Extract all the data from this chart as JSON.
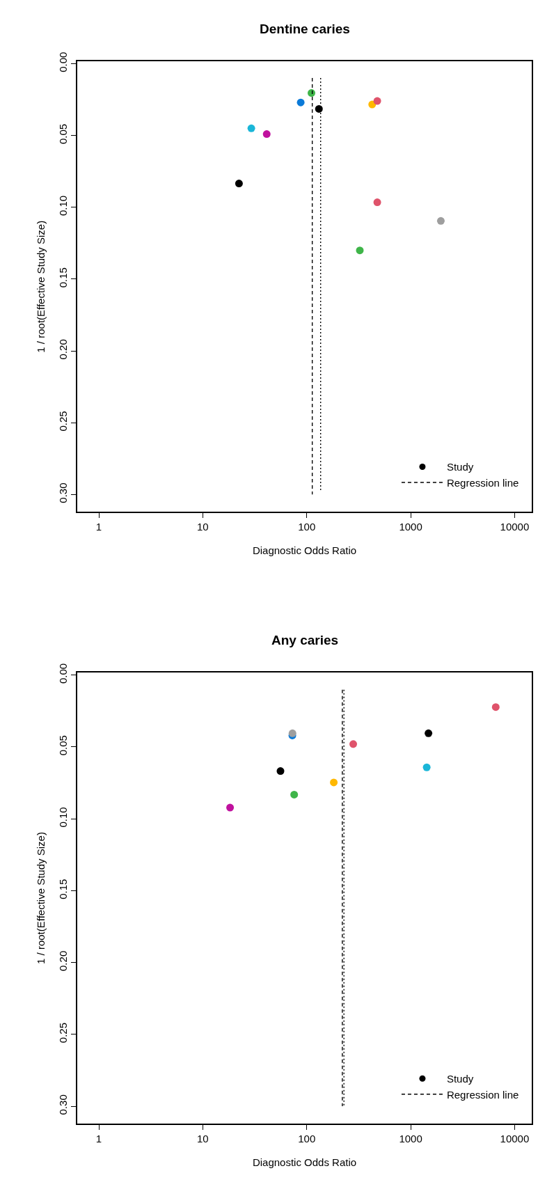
{
  "chart_data": [
    {
      "type": "scatter",
      "title": "Dentine caries",
      "xlabel": "Diagnostic Odds Ratio",
      "ylabel": "1 / root(Effective Study Size)",
      "log": "x",
      "xlim": [
        0.62,
        14600
      ],
      "xticks": [
        1,
        10,
        100,
        1000,
        10000
      ],
      "ylim": [
        0.312,
        -0.0015
      ],
      "yticks": [
        {
          "value": 0,
          "label": "0.00"
        },
        0.05,
        {
          "value": 0.1,
          "label": "0.10"
        },
        0.15,
        {
          "value": 0.2,
          "label": "0.20"
        },
        0.25,
        {
          "value": 0.3,
          "label": "0.30"
        }
      ],
      "legend": "bottom right",
      "series": [
        {
          "name": "Study",
          "marker": "circle",
          "color": "#000000",
          "x": [
            111,
            87.5,
            131,
            426,
            477,
            29.3,
            41.2,
            22.3,
            477,
            1950,
            324
          ],
          "values": [
            0.0204,
            0.027,
            0.0315,
            0.0284,
            0.026,
            0.045,
            0.049,
            0.0834,
            0.0965,
            0.1095,
            0.13
          ],
          "colors": [
            "#3fb549",
            "#0b7ad8",
            "#000000",
            "#ffb800",
            "#df536b",
            "#1ab6d8",
            "#c0119e",
            "#000000",
            "#df536b",
            "#9e9e9e",
            "#3fb549"
          ]
        },
        {
          "name": "Regression line",
          "type": "line",
          "line_style": "dashed",
          "color": "#000000",
          "x": [
            113,
            113
          ],
          "values": [
            0.01,
            0.3
          ]
        },
        {
          "type": "line",
          "line_style": "dotted",
          "color": "#000000",
          "x": [
            136,
            136
          ],
          "values": [
            0.01,
            0.298
          ]
        }
      ]
    },
    {
      "type": "scatter",
      "title": "Any caries",
      "xlabel": "Diagnostic Odds Ratio",
      "ylabel": "1 / root(Effective Study Size)",
      "log": "x",
      "xlim": [
        0.62,
        14600
      ],
      "xticks": [
        1,
        10,
        100,
        1000,
        10000
      ],
      "ylim": [
        0.312,
        -0.0017
      ],
      "yticks": [
        {
          "value": 0,
          "label": "0.00"
        },
        0.05,
        {
          "value": 0.1,
          "label": "0.10"
        },
        0.15,
        {
          "value": 0.2,
          "label": "0.20"
        },
        0.25,
        {
          "value": 0.3,
          "label": "0.30"
        }
      ],
      "legend": "bottom right",
      "series": [
        {
          "name": "Study",
          "marker": "circle",
          "color": "#000000",
          "x": [
            6580,
            72.7,
            72.9,
            1482,
            280,
            55.9,
            1426,
            182,
            75.7,
            18.3
          ],
          "values": [
            0.0223,
            0.042,
            0.0405,
            0.0405,
            0.048,
            0.0668,
            0.0642,
            0.0747,
            0.0832,
            0.0922
          ],
          "colors": [
            "#df536b",
            "#0b7ad8",
            "#9e9e9e",
            "#000000",
            "#df536b",
            "#000000",
            "#1ab6d8",
            "#ffb800",
            "#3fb549",
            "#c0119e"
          ]
        },
        {
          "name": "Regression line",
          "type": "line",
          "line_style": "dashed",
          "color": "#000000",
          "x": [
            220,
            220
          ],
          "values": [
            0.0102,
            0.3
          ]
        },
        {
          "type": "line",
          "line_style": "dotted",
          "color": "#000000",
          "x": [
            228,
            228
          ],
          "values": [
            0.0102,
            0.3
          ]
        }
      ]
    }
  ]
}
